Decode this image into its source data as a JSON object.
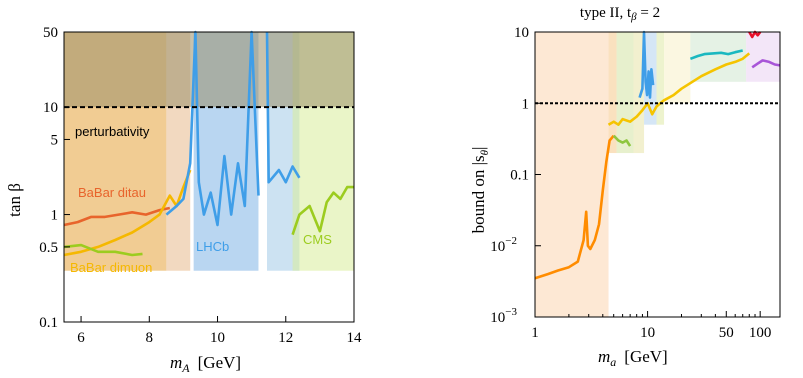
{
  "chart_data": [
    {
      "type": "line",
      "xlabel": "m",
      "xlabel_sub": "A",
      "xlabel_unit": "[GeV]",
      "ylabel": "tan β",
      "xlim": [
        5.5,
        14
      ],
      "ylim": [
        0.1,
        50
      ],
      "yscale": "log",
      "x_ticks": [
        6,
        8,
        10,
        12,
        14
      ],
      "y_ticks": [
        {
          "v": 0.1,
          "label": "0.1"
        },
        {
          "v": 0.5,
          "label": "0.5"
        },
        {
          "v": 1,
          "label": "1"
        },
        {
          "v": 5,
          "label": "5"
        },
        {
          "v": 10,
          "label": "10"
        },
        {
          "v": 50,
          "label": "50"
        }
      ],
      "reference_line": {
        "y": 10,
        "style": "dashed",
        "label": "perturbativity"
      },
      "annotations": [
        {
          "text": "BaBar ditau",
          "color": "#e8642c"
        },
        {
          "text": "BaBar dimuon",
          "color": "#f5b800"
        },
        {
          "text": "LHCb",
          "color": "#3f9ee8"
        },
        {
          "text": "CMS",
          "color": "#9ccc1f"
        }
      ],
      "series": [
        {
          "key": "ditau",
          "color": "#e8642c",
          "x": [
            5.5,
            5.9,
            6.3,
            6.7,
            7.1,
            7.5,
            7.9,
            8.3,
            8.6
          ],
          "y": [
            0.8,
            0.85,
            0.95,
            0.95,
            1.0,
            1.05,
            1.0,
            1.1,
            1.15
          ]
        },
        {
          "key": "dimuon",
          "color": "#f5b800",
          "x": [
            5.5,
            6.0,
            6.5,
            7.0,
            7.5,
            8.0,
            8.3,
            8.6,
            8.8,
            9.0,
            9.2
          ],
          "y": [
            0.42,
            0.45,
            0.5,
            0.58,
            0.68,
            0.85,
            1.0,
            1.5,
            1.2,
            1.8,
            2.6
          ]
        },
        {
          "key": "cms_low",
          "color": "#9ccc1f",
          "x": [
            5.5,
            6.0,
            6.5,
            7.0,
            7.5,
            7.8
          ],
          "y": [
            0.5,
            0.52,
            0.45,
            0.45,
            0.42,
            0.43
          ]
        },
        {
          "key": "lhcb1",
          "color": "#3f9ee8",
          "x": [
            8.5,
            8.8,
            9.0,
            9.2,
            9.35,
            9.45,
            9.6,
            9.8,
            10.0,
            10.2,
            10.4,
            10.6,
            10.8,
            11.0,
            11.2
          ],
          "y": [
            1.0,
            1.2,
            1.4,
            3.0,
            50,
            2.0,
            1.0,
            1.6,
            0.8,
            3.5,
            1.0,
            3.0,
            1.2,
            50,
            1.5
          ]
        },
        {
          "key": "lhcb2",
          "color": "#3f9ee8",
          "x": [
            11.45,
            11.5,
            11.8,
            12.0,
            12.2,
            12.4
          ],
          "y": [
            50,
            2.0,
            2.6,
            2.0,
            2.8,
            2.2
          ]
        },
        {
          "key": "cms_high",
          "color": "#9ccc1f",
          "x": [
            12.2,
            12.4,
            12.7,
            13.0,
            13.2,
            13.4,
            13.6,
            13.8,
            14.0
          ],
          "y": [
            0.65,
            1.0,
            1.2,
            0.7,
            1.3,
            1.6,
            1.4,
            1.8,
            1.8
          ]
        }
      ],
      "regions": [
        {
          "x0": 5.5,
          "x1": 8.5,
          "y0": 0.3,
          "y1": 50,
          "color": "#e6a33a"
        },
        {
          "x0": 8.5,
          "x1": 9.2,
          "y0": 0.3,
          "y1": 50,
          "color": "#e8b98c"
        },
        {
          "x0": 9.3,
          "x1": 11.2,
          "y0": 0.3,
          "y1": 50,
          "color": "#7fb4e6"
        },
        {
          "x0": 11.45,
          "x1": 12.4,
          "y0": 0.3,
          "y1": 50,
          "color": "#a3cbe8"
        },
        {
          "x0": 12.2,
          "x1": 14.0,
          "y0": 0.3,
          "y1": 50,
          "color": "#d9ec9a"
        },
        {
          "x0": 5.5,
          "x1": 14.0,
          "y0": 10,
          "y1": 50,
          "color": "#9a8f6a"
        }
      ]
    },
    {
      "type": "line",
      "title": "type II, t",
      "title_sub": "β",
      "title_tail": " = 2",
      "xlabel": "m",
      "xlabel_sub": "a",
      "xlabel_unit": "[GeV]",
      "ylabel": "bound on  |s",
      "ylabel_sub": "θ",
      "ylabel_tail": "|",
      "xscale": "log",
      "yscale": "log",
      "xlim": [
        1,
        150
      ],
      "ylim": [
        0.001,
        10
      ],
      "x_ticks": [
        {
          "v": 1,
          "label": "1"
        },
        {
          "v": 10,
          "label": "10"
        },
        {
          "v": 50,
          "label": "50"
        },
        {
          "v": 100,
          "label": "100"
        }
      ],
      "y_ticks": [
        {
          "v": 0.001,
          "label": "10",
          "exp": "−3"
        },
        {
          "v": 0.01,
          "label": "10",
          "exp": "−2"
        },
        {
          "v": 0.1,
          "label": "0.1"
        },
        {
          "v": 1,
          "label": "1"
        },
        {
          "v": 10,
          "label": "10"
        }
      ],
      "reference_line": {
        "y": 1,
        "style": "dashed"
      },
      "series": [
        {
          "key": "orange",
          "color": "#ff8c00",
          "x": [
            1.0,
            1.3,
            1.6,
            2.0,
            2.4,
            2.7,
            2.85,
            2.95,
            3.1,
            3.4,
            3.7,
            4.0,
            4.3,
            4.6,
            5.0
          ],
          "y": [
            0.0035,
            0.004,
            0.0045,
            0.005,
            0.006,
            0.012,
            0.03,
            0.01,
            0.009,
            0.012,
            0.02,
            0.06,
            0.15,
            0.3,
            0.35
          ]
        },
        {
          "key": "yellow",
          "color": "#f5c400",
          "x": [
            4.5,
            5.0,
            5.5,
            6.0,
            7.0,
            8.0,
            9.0,
            10.0,
            11.0,
            12.0,
            14.0,
            17.0,
            20.0,
            25.0,
            30.0,
            40.0,
            50.0,
            60.0,
            70.0,
            80.0
          ],
          "y": [
            0.5,
            0.55,
            0.5,
            0.6,
            0.55,
            0.65,
            0.8,
            1.0,
            0.7,
            0.9,
            1.1,
            1.3,
            1.6,
            2.0,
            2.4,
            3.0,
            3.5,
            3.8,
            4.2,
            5.0
          ]
        },
        {
          "key": "green",
          "color": "#8ec63f",
          "x": [
            5.0,
            5.5,
            6.0,
            6.5,
            7.0
          ],
          "y": [
            0.35,
            0.3,
            0.28,
            0.3,
            0.25
          ]
        },
        {
          "key": "blue",
          "color": "#3f9ee8",
          "x": [
            8.5,
            9.0,
            9.3,
            9.6,
            9.9,
            10.2,
            10.5,
            10.8,
            11.2
          ],
          "y": [
            1.2,
            1.6,
            10,
            2.0,
            1.3,
            2.8,
            1.2,
            3.0,
            1.8
          ]
        },
        {
          "key": "teal",
          "color": "#1ab8c0",
          "x": [
            24,
            28,
            32,
            38,
            45,
            52,
            60,
            70
          ],
          "y": [
            4.2,
            4.6,
            4.9,
            5.0,
            5.1,
            4.9,
            5.2,
            5.5
          ]
        },
        {
          "key": "red",
          "color": "#e8102a",
          "x": [
            80,
            85,
            90,
            95,
            100
          ],
          "y": [
            10,
            8.5,
            10,
            9.0,
            10
          ]
        },
        {
          "key": "purple",
          "color": "#a855d8",
          "x": [
            85,
            95,
            105,
            120,
            135,
            150
          ],
          "y": [
            3.2,
            3.6,
            4.0,
            3.8,
            3.5,
            3.4
          ]
        }
      ],
      "regions": [
        {
          "x0": 1,
          "x1": 4.5,
          "y0": 0.001,
          "y1": 10,
          "color": "#fbd6b0"
        },
        {
          "x0": 4.5,
          "x1": 5.3,
          "y0": 0.2,
          "y1": 10,
          "color": "#f5c98a"
        },
        {
          "x0": 5.3,
          "x1": 7.5,
          "y0": 0.2,
          "y1": 10,
          "color": "#d3e3a4"
        },
        {
          "x0": 7.5,
          "x1": 9.3,
          "y0": 0.2,
          "y1": 10,
          "color": "#e8e4a8"
        },
        {
          "x0": 9.3,
          "x1": 12.0,
          "y0": 0.5,
          "y1": 10,
          "color": "#b2d1ef"
        },
        {
          "x0": 12.0,
          "x1": 14.0,
          "y0": 0.5,
          "y1": 10,
          "color": "#dfe9a6"
        },
        {
          "x0": 14.0,
          "x1": 24.0,
          "y0": 1,
          "y1": 10,
          "color": "#f7f0c8"
        },
        {
          "x0": 24.0,
          "x1": 75.0,
          "y0": 2,
          "y1": 10,
          "color": "#cfe8cf"
        },
        {
          "x0": 75.0,
          "x1": 150,
          "y0": 2,
          "y1": 10,
          "color": "#e9d2f2"
        }
      ]
    }
  ]
}
